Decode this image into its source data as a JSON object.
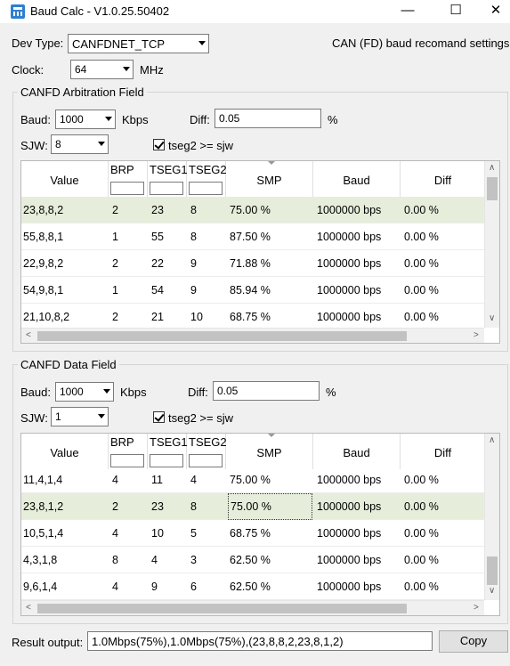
{
  "window": {
    "title": "Baud Calc - V1.0.25.50402",
    "controls": {
      "minimize": "—",
      "maximize": "☐",
      "close": "✕"
    }
  },
  "top": {
    "dev_type_label": "Dev Type:",
    "dev_type_value": "CANFDNET_TCP",
    "recommend_label": "CAN (FD) baud recomand settings",
    "clock_label": "Clock:",
    "clock_value": "64",
    "clock_unit": "MHz"
  },
  "arbitration": {
    "group_title": "CANFD Arbitration Field",
    "baud_label": "Baud:",
    "baud_value": "1000",
    "baud_unit": "Kbps",
    "diff_label": "Diff:",
    "diff_value": "0.05",
    "diff_unit": "%",
    "sjw_label": "SJW:",
    "sjw_value": "8",
    "tseg_check_label": "tseg2 >= sjw",
    "tseg_checked": true,
    "columns": [
      "Value",
      "BRP",
      "TSEG1",
      "TSEG2",
      "SMP",
      "Baud",
      "Diff"
    ],
    "rows": [
      [
        "23,8,8,2",
        "2",
        "23",
        "8",
        "75.00 %",
        "1000000 bps",
        "0.00 %"
      ],
      [
        "55,8,8,1",
        "1",
        "55",
        "8",
        "87.50 %",
        "1000000 bps",
        "0.00 %"
      ],
      [
        "22,9,8,2",
        "2",
        "22",
        "9",
        "71.88 %",
        "1000000 bps",
        "0.00 %"
      ],
      [
        "54,9,8,1",
        "1",
        "54",
        "9",
        "85.94 %",
        "1000000 bps",
        "0.00 %"
      ],
      [
        "21,10,8,2",
        "2",
        "21",
        "10",
        "68.75 %",
        "1000000 bps",
        "0.00 %"
      ]
    ],
    "selected_row": 0
  },
  "data_field": {
    "group_title": "CANFD Data Field",
    "baud_label": "Baud:",
    "baud_value": "1000",
    "baud_unit": "Kbps",
    "diff_label": "Diff:",
    "diff_value": "0.05",
    "diff_unit": "%",
    "sjw_label": "SJW:",
    "sjw_value": "1",
    "tseg_check_label": "tseg2 >= sjw",
    "tseg_checked": true,
    "columns": [
      "Value",
      "BRP",
      "TSEG1",
      "TSEG2",
      "SMP",
      "Baud",
      "Diff"
    ],
    "rows": [
      [
        "11,4,1,4",
        "4",
        "11",
        "4",
        "75.00 %",
        "1000000 bps",
        "0.00 %"
      ],
      [
        "23,8,1,2",
        "2",
        "23",
        "8",
        "75.00 %",
        "1000000 bps",
        "0.00 %"
      ],
      [
        "10,5,1,4",
        "4",
        "10",
        "5",
        "68.75 %",
        "1000000 bps",
        "0.00 %"
      ],
      [
        "4,3,1,8",
        "8",
        "4",
        "3",
        "62.50 %",
        "1000000 bps",
        "0.00 %"
      ],
      [
        "9,6,1,4",
        "4",
        "9",
        "6",
        "62.50 %",
        "1000000 bps",
        "0.00 %"
      ]
    ],
    "selected_row": 1
  },
  "result": {
    "label": "Result output:",
    "value": "1.0Mbps(75%),1.0Mbps(75%),(23,8,8,2,23,8,1,2)",
    "copy_label": "Copy"
  },
  "icons": {
    "app": "calculator-icon",
    "dropdown": "chevron-down-icon",
    "check": "check-icon",
    "scroll_up": "∧",
    "scroll_down": "∨",
    "scroll_left": "<",
    "scroll_right": ">"
  }
}
